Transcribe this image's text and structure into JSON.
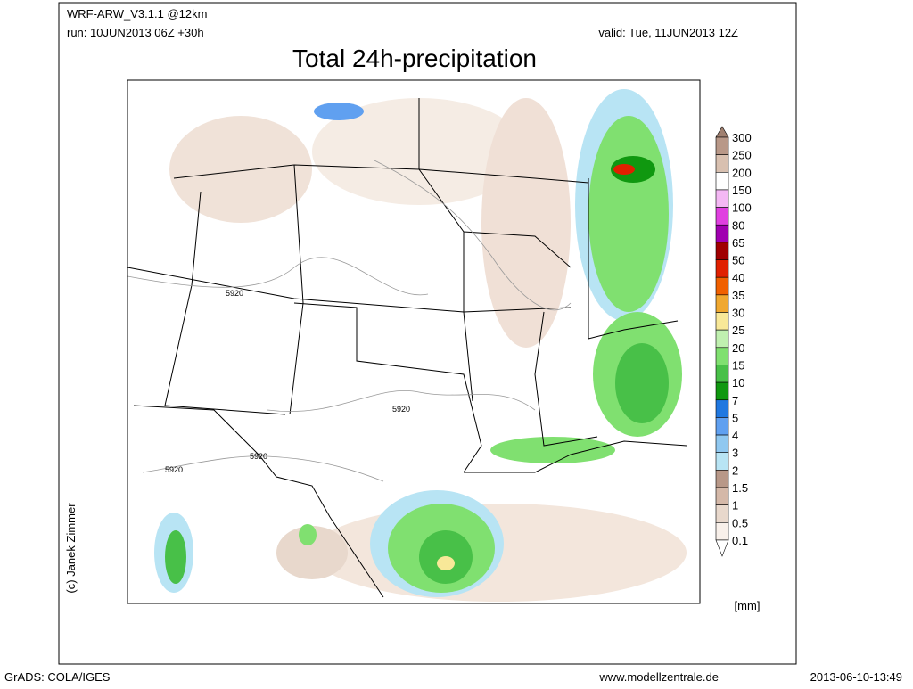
{
  "header": {
    "model": "WRF-ARW_V3.1.1 @12km",
    "run": "run: 10JUN2013 06Z +30h",
    "valid": "valid: Tue, 11JUN2013 12Z",
    "title": "Total 24h-precipitation"
  },
  "map": {
    "contour_labels": [
      "5920",
      "5920",
      "5920",
      "5920"
    ],
    "copyright": "(c) Janek Zimmer"
  },
  "colorbar": {
    "top_color": "#a08070",
    "unit": "[mm]",
    "entries": [
      {
        "label": "300",
        "color": "#b89888"
      },
      {
        "label": "250",
        "color": "#d8c0b0"
      },
      {
        "label": "200",
        "color": "#ffffff"
      },
      {
        "label": "150",
        "color": "#f4b8f4"
      },
      {
        "label": "100",
        "color": "#e040e0"
      },
      {
        "label": "80",
        "color": "#a000b0"
      },
      {
        "label": "65",
        "color": "#a00000"
      },
      {
        "label": "50",
        "color": "#e02000"
      },
      {
        "label": "40",
        "color": "#f06000"
      },
      {
        "label": "35",
        "color": "#f0a830"
      },
      {
        "label": "30",
        "color": "#f8e898"
      },
      {
        "label": "25",
        "color": "#c0f0b0"
      },
      {
        "label": "20",
        "color": "#80e070"
      },
      {
        "label": "15",
        "color": "#48c048"
      },
      {
        "label": "10",
        "color": "#109810"
      },
      {
        "label": "7",
        "color": "#2078e0"
      },
      {
        "label": "5",
        "color": "#60a0f0"
      },
      {
        "label": "4",
        "color": "#90c8f0"
      },
      {
        "label": "3",
        "color": "#b8e4f4"
      },
      {
        "label": "2",
        "color": "#b89888"
      },
      {
        "label": "1.5",
        "color": "#d4b8a8"
      },
      {
        "label": "1",
        "color": "#e8d8cc"
      },
      {
        "label": "0.5",
        "color": "#f8f0ea"
      },
      {
        "label": "0.1",
        "color": "#ffffff"
      }
    ]
  },
  "footer": {
    "software": "GrADS: COLA/IGES",
    "website": "www.modellzentrale.de",
    "timestamp": "2013-06-10-13:49"
  }
}
